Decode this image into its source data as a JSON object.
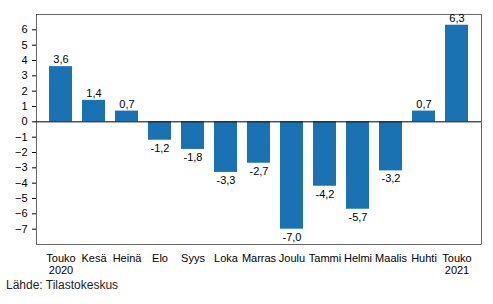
{
  "chart_data": {
    "type": "bar",
    "categories": [
      "Touko\n2020",
      "Kesä",
      "Heinä",
      "Elo",
      "Syys",
      "Loka",
      "Marras",
      "Joulu",
      "Tammi",
      "Helmi",
      "Maalis",
      "Huhti",
      "Touko\n2021"
    ],
    "values": [
      3.6,
      1.4,
      0.7,
      -1.2,
      -1.8,
      -3.3,
      -2.7,
      -7.0,
      -4.2,
      -5.7,
      -3.2,
      0.7,
      6.3
    ],
    "value_labels": [
      "3,6",
      "1,4",
      "0,7",
      "-1,2",
      "-1,8",
      "-3,3",
      "-2,7",
      "-7,0",
      "-4,2",
      "-5,7",
      "-3,2",
      "0,7",
      "6,3"
    ],
    "data_labels": true,
    "color": "#1a72b2",
    "ylim": [
      -8,
      7
    ],
    "yticks": [
      -7,
      -6,
      -5,
      -4,
      -3,
      -2,
      -1,
      0,
      1,
      2,
      3,
      4,
      5,
      6
    ],
    "grid": false,
    "caption": "Lähde: Tilastokeskus"
  }
}
